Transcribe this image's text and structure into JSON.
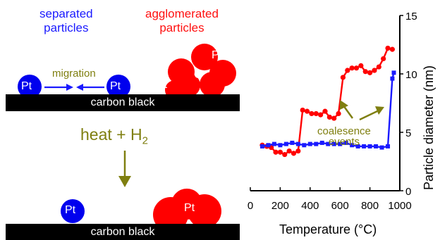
{
  "diagram": {
    "separated_label": "separated\nparticles",
    "agglomerated_label": "agglomerated\nparticles",
    "migration_label": "migration",
    "particle_label": "Pt",
    "support_label": "carbon black",
    "process_label": "heat + H",
    "process_sub": "2",
    "colors": {
      "separated": "#0000ee",
      "agglomerated": "#ff0000",
      "support": "#000000",
      "annotation": "#7f7f10"
    }
  },
  "chart_data": {
    "type": "line",
    "xlabel": "Temperature (°C)",
    "ylabel": "Particle diameter (nm)",
    "xlim": [
      0,
      1000
    ],
    "ylim": [
      0,
      15
    ],
    "xticks": [
      0,
      200,
      400,
      600,
      800,
      1000
    ],
    "yticks": [
      0,
      5,
      10,
      15
    ],
    "annotation": "coalesence\nevents",
    "series": [
      {
        "color": "#ff0000",
        "marker": "circle",
        "x": [
          80,
          110,
          140,
          170,
          200,
          230,
          260,
          290,
          320,
          350,
          380,
          410,
          440,
          470,
          500,
          530,
          560,
          590,
          620,
          650,
          680,
          710,
          740,
          770,
          800,
          830,
          860,
          890,
          920,
          950
        ],
        "y": [
          3.9,
          3.8,
          3.7,
          3.3,
          3.3,
          3.1,
          3.4,
          3.2,
          3.4,
          6.9,
          6.8,
          6.6,
          6.6,
          6.5,
          6.8,
          6.3,
          6.2,
          6.6,
          9.7,
          10.3,
          10.5,
          10.5,
          10.7,
          10.2,
          10.1,
          10.3,
          10.6,
          11.3,
          12.2,
          12.1
        ]
      },
      {
        "color": "#1a1aff",
        "marker": "square",
        "x": [
          80,
          120,
          160,
          200,
          240,
          280,
          320,
          360,
          400,
          440,
          480,
          520,
          560,
          600,
          640,
          680,
          720,
          760,
          800,
          840,
          880,
          920,
          950,
          960
        ],
        "y": [
          3.8,
          3.9,
          4.0,
          3.9,
          4.0,
          4.1,
          4.0,
          3.9,
          4.0,
          4.0,
          4.1,
          4.0,
          4.0,
          4.0,
          4.1,
          3.9,
          3.8,
          3.8,
          3.8,
          3.8,
          3.7,
          3.8,
          9.6,
          10.1
        ]
      }
    ]
  }
}
